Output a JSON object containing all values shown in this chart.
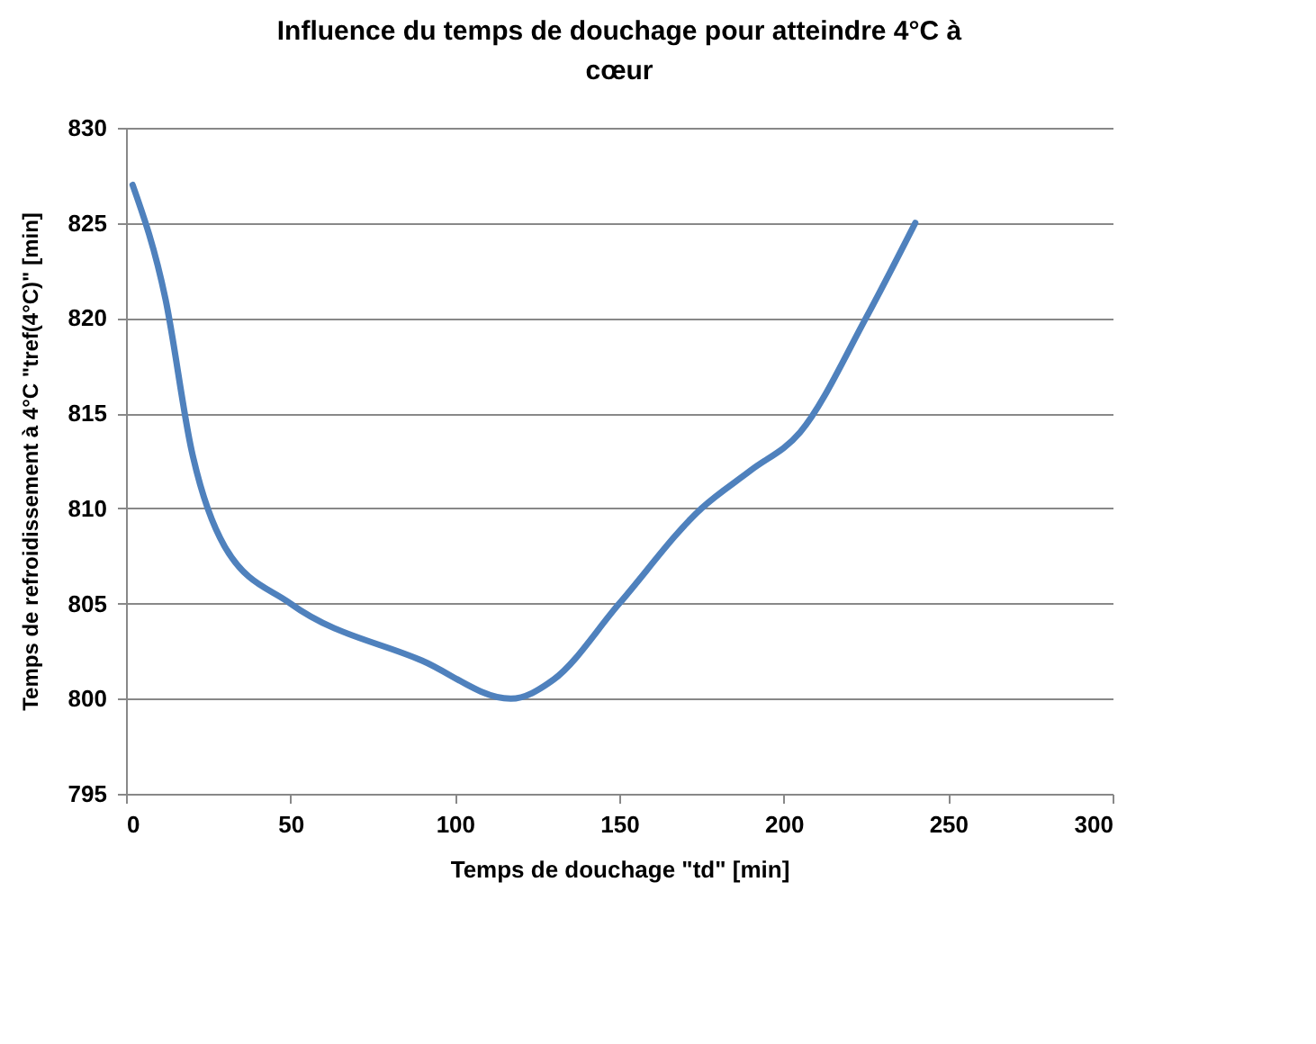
{
  "chart_data": {
    "type": "line",
    "title": "Influence du temps de douchage pour atteindre 4°C à cœur",
    "xlabel": "Temps de douchage \"td\" [min]",
    "ylabel": "Temps de refroidissement à 4°C \"tref(4°C)\" [min]",
    "x": [
      2,
      12,
      20,
      30,
      50,
      90,
      117,
      130,
      150,
      175,
      190,
      205,
      225,
      240
    ],
    "series": [
      {
        "color": "#4f81bd",
        "values": [
          827,
          821,
          813,
          808,
          805,
          802,
          800,
          801,
          805,
          810,
          812,
          814,
          820,
          825
        ]
      }
    ],
    "xlim": [
      0,
      300
    ],
    "xticks": [
      0,
      50,
      100,
      150,
      200,
      250,
      300
    ],
    "ylim": [
      795,
      830
    ],
    "yticks": [
      795,
      800,
      805,
      810,
      815,
      820,
      825,
      830
    ],
    "grid": "y",
    "marker": "none",
    "line_style": "solid"
  }
}
